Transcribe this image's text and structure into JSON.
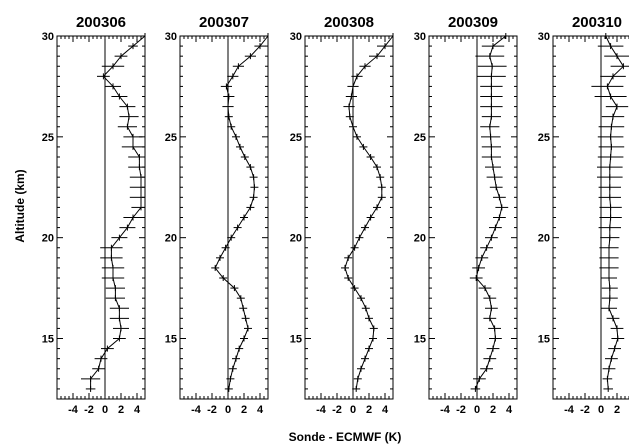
{
  "chart_data": {
    "type": "line",
    "ylabel": "Altitude (km)",
    "xlabel": "Sonde - ECMWF (K)",
    "ylim": [
      12,
      30
    ],
    "xlim": [
      -6,
      5
    ],
    "y_ticks": [
      15,
      20,
      25,
      30
    ],
    "x_ticks": [
      -4,
      -2,
      0,
      2,
      4
    ],
    "panels": [
      {
        "title": "200306",
        "series": [
          {
            "y": [
              12.5,
              13.0,
              13.5,
              14.0,
              14.5,
              15.0,
              15.5,
              16.0,
              16.5,
              17.0,
              17.5,
              18.0,
              18.5,
              19.0,
              19.5,
              20.0,
              20.5,
              21.0,
              21.5,
              22.0,
              22.5,
              23.0,
              23.5,
              24.0,
              24.5,
              25.0,
              25.5,
              26.0,
              26.5,
              27.0,
              27.5,
              28.0,
              28.5,
              29.0,
              29.5,
              30.0
            ],
            "x": [
              -1.8,
              -1.8,
              -0.8,
              -0.5,
              0.3,
              1.8,
              2.0,
              1.8,
              1.8,
              1.3,
              1.3,
              1.0,
              1.0,
              0.8,
              0.8,
              1.8,
              2.8,
              3.5,
              4.5,
              4.5,
              4.5,
              4.5,
              4.3,
              4.3,
              3.5,
              3.5,
              2.8,
              3.0,
              2.8,
              1.8,
              1.0,
              -0.2,
              1.0,
              2.0,
              3.5,
              5.0
            ],
            "err": [
              0.6,
              1.2,
              0.8,
              0.8,
              0.8,
              0.8,
              1.0,
              1.2,
              1.2,
              1.2,
              1.2,
              1.4,
              1.4,
              1.4,
              1.4,
              1.0,
              1.0,
              1.2,
              1.2,
              1.4,
              1.4,
              1.4,
              1.4,
              1.4,
              1.4,
              1.2,
              1.2,
              1.2,
              1.0,
              1.0,
              1.0,
              0.8,
              1.4,
              0.8,
              0.6,
              0.4
            ]
          }
        ]
      },
      {
        "title": "200307",
        "series": [
          {
            "y": [
              12.5,
              13.0,
              13.5,
              14.0,
              14.5,
              15.0,
              15.5,
              16.0,
              16.5,
              17.0,
              17.5,
              18.0,
              18.5,
              19.0,
              19.5,
              20.0,
              20.5,
              21.0,
              21.5,
              22.0,
              22.5,
              23.0,
              23.5,
              24.0,
              24.5,
              25.0,
              25.5,
              26.0,
              26.5,
              27.0,
              27.5,
              28.0,
              28.5,
              29.0,
              29.5,
              30.0
            ],
            "x": [
              0.1,
              0.3,
              0.6,
              1.0,
              1.4,
              2.0,
              2.5,
              2.2,
              1.9,
              1.6,
              0.8,
              -0.6,
              -1.6,
              -1.0,
              -0.3,
              0.4,
              1.2,
              2.0,
              2.8,
              3.2,
              3.3,
              3.2,
              2.8,
              2.1,
              1.5,
              1.0,
              0.4,
              0.1,
              0.0,
              0.1,
              -0.2,
              0.6,
              1.3,
              2.8,
              4.0,
              5.0
            ],
            "err": [
              0.5,
              0.5,
              0.5,
              0.5,
              0.5,
              0.5,
              0.5,
              0.5,
              0.5,
              0.5,
              0.5,
              0.5,
              0.5,
              0.5,
              0.5,
              0.5,
              0.5,
              0.5,
              0.5,
              0.5,
              0.5,
              0.5,
              0.5,
              0.5,
              0.5,
              0.5,
              0.5,
              0.5,
              0.7,
              0.7,
              0.7,
              0.7,
              0.7,
              0.7,
              0.7,
              0.5
            ]
          }
        ]
      },
      {
        "title": "200308",
        "series": [
          {
            "y": [
              12.5,
              13.0,
              13.5,
              14.0,
              14.5,
              15.0,
              15.5,
              16.0,
              16.5,
              17.0,
              17.5,
              18.0,
              18.5,
              19.0,
              19.5,
              20.0,
              20.5,
              21.0,
              21.5,
              22.0,
              22.5,
              23.0,
              23.5,
              24.0,
              24.5,
              25.0,
              25.5,
              26.0,
              26.5,
              27.0,
              27.5,
              28.0,
              28.5,
              29.0,
              29.5,
              30.0
            ],
            "x": [
              0.4,
              0.6,
              1.0,
              1.5,
              2.0,
              2.5,
              2.6,
              2.0,
              1.6,
              1.0,
              0.2,
              -0.6,
              -1.0,
              -0.6,
              0.2,
              0.8,
              1.5,
              2.2,
              3.0,
              3.6,
              3.6,
              3.4,
              3.0,
              2.2,
              1.3,
              0.5,
              0.0,
              -0.4,
              -0.5,
              -0.2,
              0.0,
              0.5,
              1.5,
              3.0,
              4.0,
              5.0
            ],
            "err": [
              0.5,
              0.5,
              0.5,
              0.5,
              0.5,
              0.5,
              0.5,
              0.5,
              0.5,
              0.5,
              0.5,
              0.5,
              0.5,
              0.5,
              0.5,
              0.5,
              0.5,
              0.5,
              0.5,
              0.5,
              0.5,
              0.5,
              0.5,
              0.5,
              0.5,
              0.5,
              0.5,
              0.5,
              0.7,
              0.7,
              0.7,
              0.7,
              0.7,
              1.0,
              1.0,
              0.8
            ]
          }
        ]
      },
      {
        "title": "200309",
        "series": [
          {
            "y": [
              12.5,
              13.0,
              13.5,
              14.0,
              14.5,
              15.0,
              15.5,
              16.0,
              16.5,
              17.0,
              17.5,
              18.0,
              18.5,
              19.0,
              19.5,
              20.0,
              20.5,
              21.0,
              21.5,
              22.0,
              22.5,
              23.0,
              23.5,
              24.0,
              24.5,
              25.0,
              25.5,
              26.0,
              26.5,
              27.0,
              27.5,
              28.0,
              28.5,
              29.0,
              29.5,
              30.0
            ],
            "x": [
              -0.2,
              0.3,
              1.2,
              1.6,
              2.0,
              2.3,
              2.2,
              1.6,
              1.8,
              1.6,
              1.0,
              -0.1,
              0.2,
              0.6,
              1.2,
              1.8,
              2.3,
              2.8,
              3.1,
              2.8,
              2.4,
              2.2,
              2.0,
              1.8,
              1.8,
              1.7,
              1.6,
              1.8,
              1.8,
              1.8,
              1.8,
              1.8,
              1.9,
              1.6,
              2.0,
              3.6
            ],
            "err": [
              0.6,
              0.8,
              0.8,
              0.8,
              0.8,
              0.8,
              0.8,
              0.8,
              0.8,
              0.8,
              0.8,
              0.8,
              0.8,
              0.8,
              0.8,
              0.8,
              0.8,
              0.8,
              0.8,
              0.8,
              0.8,
              1.0,
              1.0,
              1.2,
              1.2,
              1.2,
              1.2,
              1.2,
              1.4,
              1.4,
              1.4,
              1.8,
              1.8,
              1.8,
              1.4,
              0.4
            ]
          }
        ]
      },
      {
        "title": "200310",
        "series": [
          {
            "y": [
              12.5,
              13.0,
              13.5,
              14.0,
              14.5,
              15.0,
              15.5,
              16.0,
              16.5,
              17.0,
              17.5,
              18.0,
              18.5,
              19.0,
              19.5,
              20.0,
              20.5,
              21.0,
              21.5,
              22.0,
              22.5,
              23.0,
              23.5,
              24.0,
              24.5,
              25.0,
              25.5,
              26.0,
              26.5,
              27.0,
              27.5,
              28.0,
              28.5,
              29.0,
              29.5,
              30.0
            ],
            "x": [
              0.9,
              0.8,
              1.0,
              1.3,
              1.7,
              2.1,
              2.0,
              1.5,
              1.0,
              1.1,
              1.1,
              1.0,
              1.0,
              1.0,
              1.0,
              1.1,
              1.1,
              1.2,
              1.2,
              1.1,
              1.1,
              1.1,
              1.1,
              1.2,
              1.3,
              1.2,
              1.3,
              1.5,
              2.0,
              1.2,
              0.8,
              1.5,
              2.8,
              2.0,
              1.2,
              0.6
            ],
            "err": [
              0.6,
              0.6,
              0.8,
              0.8,
              0.8,
              0.8,
              0.8,
              0.8,
              1.0,
              1.0,
              1.0,
              1.0,
              1.2,
              1.2,
              1.2,
              1.2,
              1.4,
              1.4,
              1.4,
              1.4,
              1.4,
              1.6,
              1.6,
              1.6,
              1.6,
              1.6,
              1.6,
              1.4,
              1.4,
              2.0,
              2.0,
              1.6,
              1.6,
              1.6,
              1.6,
              1.2
            ]
          }
        ]
      }
    ]
  }
}
